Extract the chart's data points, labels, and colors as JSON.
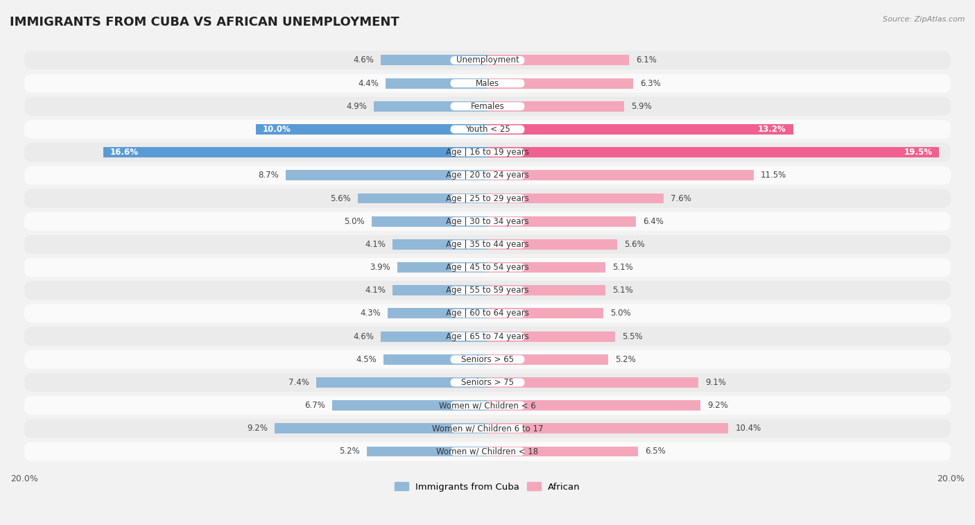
{
  "title": "IMMIGRANTS FROM CUBA VS AFRICAN UNEMPLOYMENT",
  "source": "Source: ZipAtlas.com",
  "categories": [
    "Unemployment",
    "Males",
    "Females",
    "Youth < 25",
    "Age | 16 to 19 years",
    "Age | 20 to 24 years",
    "Age | 25 to 29 years",
    "Age | 30 to 34 years",
    "Age | 35 to 44 years",
    "Age | 45 to 54 years",
    "Age | 55 to 59 years",
    "Age | 60 to 64 years",
    "Age | 65 to 74 years",
    "Seniors > 65",
    "Seniors > 75",
    "Women w/ Children < 6",
    "Women w/ Children 6 to 17",
    "Women w/ Children < 18"
  ],
  "cuba_values": [
    4.6,
    4.4,
    4.9,
    10.0,
    16.6,
    8.7,
    5.6,
    5.0,
    4.1,
    3.9,
    4.1,
    4.3,
    4.6,
    4.5,
    7.4,
    6.7,
    9.2,
    5.2
  ],
  "african_values": [
    6.1,
    6.3,
    5.9,
    13.2,
    19.5,
    11.5,
    7.6,
    6.4,
    5.6,
    5.1,
    5.1,
    5.0,
    5.5,
    5.2,
    9.1,
    9.2,
    10.4,
    6.5
  ],
  "cuba_color": "#92b8d8",
  "african_color": "#f4a7bb",
  "cuba_highlight_color": "#5b9bd5",
  "african_highlight_color": "#f06090",
  "highlight_rows": [
    3,
    4
  ],
  "xlim": 20.0,
  "background_color": "#f2f2f2",
  "row_bg_light": "#fafafa",
  "row_bg_dark": "#ebebeb",
  "title_fontsize": 13,
  "label_fontsize": 8.5,
  "value_fontsize": 8.5
}
